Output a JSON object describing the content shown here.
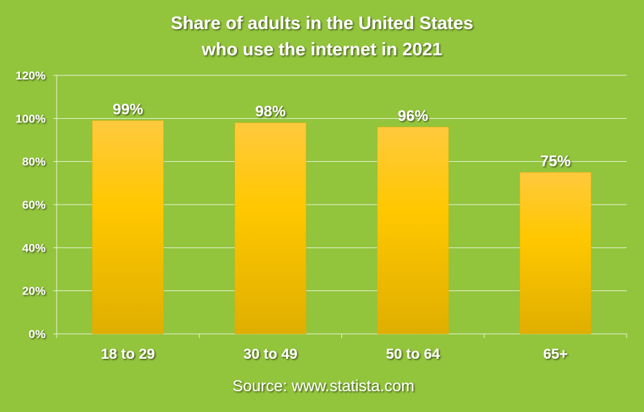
{
  "chart_data": {
    "type": "bar",
    "title_lines": [
      "Share of adults in the United States",
      "who use the internet in 2021"
    ],
    "categories": [
      "18 to 29",
      "30 to 49",
      "50 to 64",
      "65+"
    ],
    "values": [
      99,
      98,
      96,
      75
    ],
    "value_labels": [
      "99%",
      "98%",
      "96%",
      "75%"
    ],
    "y_ticks": [
      0,
      20,
      40,
      60,
      80,
      100,
      120
    ],
    "y_tick_labels": [
      "0%",
      "20%",
      "40%",
      "60%",
      "80%",
      "100%",
      "120%"
    ],
    "ylim": [
      0,
      120
    ],
    "grid": true,
    "legend": "none",
    "source": "Source: www.statista.com",
    "colors": {
      "background": "#92C43C",
      "bar_top": "#FFC93E",
      "bar_mid": "#FFC800",
      "bar_bottom": "#E0AE00",
      "grid": "#EAF4D8",
      "text": "#FFFFFF"
    }
  }
}
